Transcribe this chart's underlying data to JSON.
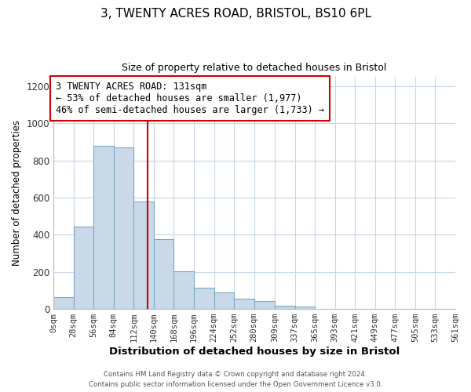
{
  "title1": "3, TWENTY ACRES ROAD, BRISTOL, BS10 6PL",
  "title2": "Size of property relative to detached houses in Bristol",
  "xlabel": "Distribution of detached houses by size in Bristol",
  "ylabel": "Number of detached properties",
  "bar_edges": [
    0,
    28,
    56,
    84,
    112,
    140,
    168,
    196,
    224,
    252,
    280,
    309,
    337,
    365,
    393,
    421,
    449,
    477,
    505,
    533,
    561
  ],
  "bar_heights": [
    65,
    445,
    878,
    870,
    580,
    375,
    205,
    115,
    90,
    55,
    42,
    18,
    12,
    0,
    0,
    0,
    0,
    0,
    0,
    0
  ],
  "tick_labels": [
    "0sqm",
    "28sqm",
    "56sqm",
    "84sqm",
    "112sqm",
    "140sqm",
    "168sqm",
    "196sqm",
    "224sqm",
    "252sqm",
    "280sqm",
    "309sqm",
    "337sqm",
    "365sqm",
    "393sqm",
    "421sqm",
    "449sqm",
    "477sqm",
    "505sqm",
    "533sqm",
    "561sqm"
  ],
  "bar_color": "#c9d9e8",
  "bar_edge_color": "#7fa8c4",
  "vline_x": 131,
  "vline_color": "#cc0000",
  "annotation_text": "3 TWENTY ACRES ROAD: 131sqm\n← 53% of detached houses are smaller (1,977)\n46% of semi-detached houses are larger (1,733) →",
  "annotation_box_color": "#ffffff",
  "annotation_box_edge": "#cc0000",
  "ylim": [
    0,
    1250
  ],
  "yticks": [
    0,
    200,
    400,
    600,
    800,
    1000,
    1200
  ],
  "footer1": "Contains HM Land Registry data © Crown copyright and database right 2024.",
  "footer2": "Contains public sector information licensed under the Open Government Licence v3.0.",
  "background_color": "#ffffff",
  "grid_color": "#c8d8e8",
  "figsize": [
    6.0,
    5.0
  ],
  "dpi": 100
}
